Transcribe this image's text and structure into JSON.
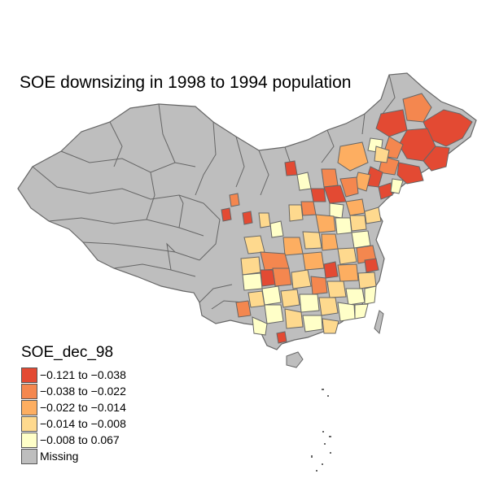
{
  "title": "SOE downsizing in 1998 to 1994 population",
  "legend": {
    "title": "SOE_dec_98",
    "items": [
      {
        "label": "−0.121 to −0.038",
        "color": "#e34a33"
      },
      {
        "label": "−0.038 to −0.022",
        "color": "#f4874f"
      },
      {
        "label": "−0.022 to −0.014",
        "color": "#fdae61"
      },
      {
        "label": "−0.014 to −0.008",
        "color": "#fed98e"
      },
      {
        "label": "−0.008 to 0.067",
        "color": "#ffffc8"
      },
      {
        "label": "Missing",
        "color": "#bebebe"
      }
    ]
  },
  "colors": {
    "missing": "#bebebe",
    "border": "#666666",
    "background": "#ffffff"
  }
}
